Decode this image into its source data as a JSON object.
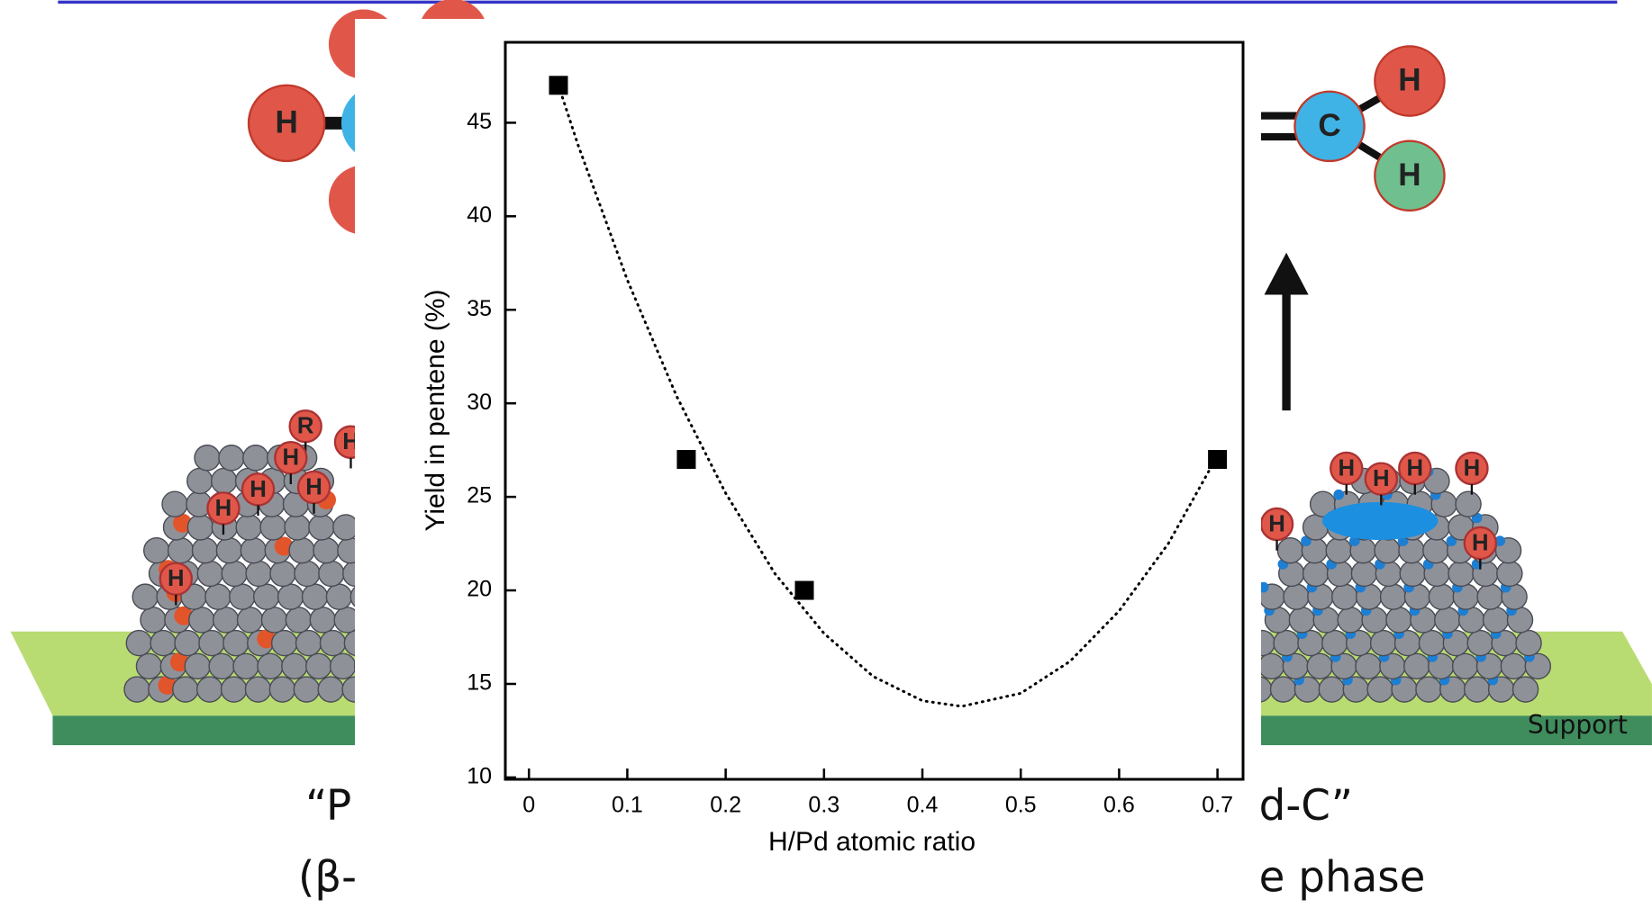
{
  "background": {
    "labels": [
      "H",
      "H",
      "C",
      "H",
      "R",
      "H",
      "H",
      "H",
      "H",
      "H",
      "H",
      "H",
      "H",
      "H",
      "H",
      "H",
      "H",
      "Support",
      "“P",
      "d-C”",
      "(β-",
      "e phase"
    ]
  },
  "chart_data": {
    "type": "scatter",
    "x": [
      0.03,
      0.16,
      0.28,
      0.7
    ],
    "values": [
      47,
      27,
      20,
      27
    ],
    "color": "#000000",
    "fit": {
      "x": [
        0.03,
        0.05,
        0.1,
        0.15,
        0.2,
        0.25,
        0.3,
        0.35,
        0.4,
        0.44,
        0.5,
        0.55,
        0.6,
        0.65,
        0.7
      ],
      "values": [
        47.0,
        43.8,
        36.6,
        30.4,
        25.2,
        20.9,
        17.7,
        15.4,
        14.1,
        13.8,
        14.5,
        16.2,
        18.9,
        22.5,
        27.2
      ],
      "color": "#000000"
    },
    "xlabel": "H/Pd atomic ratio",
    "ylabel": "Yield in pentene (%)",
    "xlim": [
      -0.024,
      0.726
    ],
    "ylim": [
      9.9,
      49.3
    ],
    "xticks": [
      0,
      0.1,
      0.2,
      0.3,
      0.4,
      0.5,
      0.6,
      0.7
    ],
    "yticks": [
      10,
      15,
      20,
      25,
      30,
      35,
      40,
      45
    ]
  }
}
